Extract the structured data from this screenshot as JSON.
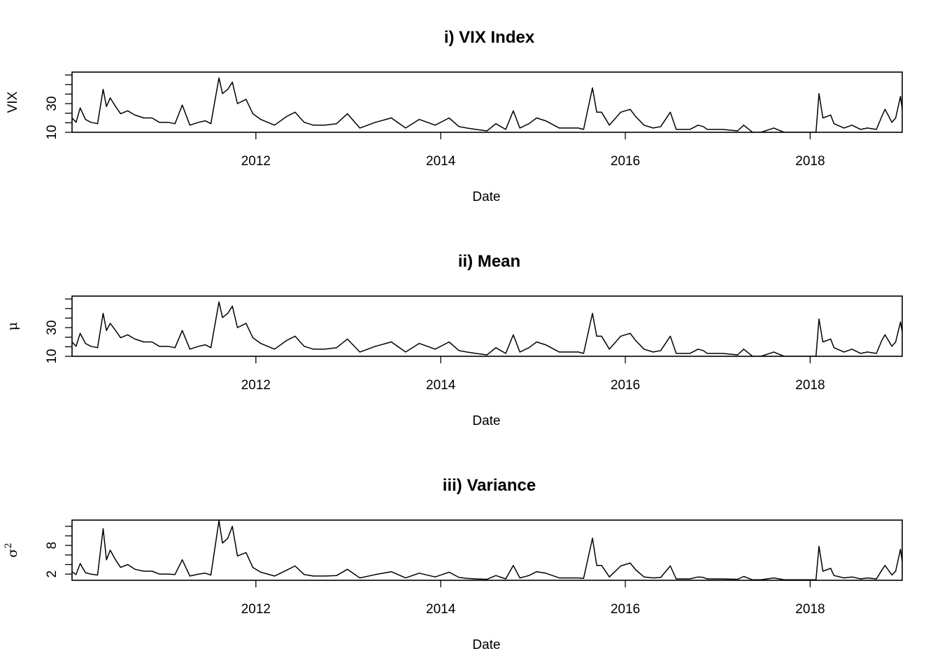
{
  "chart_data": [
    {
      "type": "line",
      "title": "i) VIX Index",
      "xlabel": "Date",
      "ylabel": "VIX",
      "ylim": [
        10,
        52
      ],
      "yticks": [
        10,
        30
      ],
      "xticks": [
        "2012",
        "2014",
        "2016",
        "2018"
      ],
      "xlim": [
        "2010-01-04",
        "2018-12-31"
      ],
      "grid": false,
      "x": [
        "2010-01-04",
        "2010-01-20",
        "2010-02-05",
        "2010-02-26",
        "2010-03-19",
        "2010-04-15",
        "2010-05-07",
        "2010-05-20",
        "2010-06-04",
        "2010-06-25",
        "2010-07-15",
        "2010-08-12",
        "2010-09-10",
        "2010-10-15",
        "2010-11-16",
        "2010-12-15",
        "2011-01-18",
        "2011-02-15",
        "2011-03-16",
        "2011-04-15",
        "2011-05-20",
        "2011-06-15",
        "2011-07-07",
        "2011-08-08",
        "2011-08-22",
        "2011-09-12",
        "2011-09-30",
        "2011-10-20",
        "2011-11-23",
        "2011-12-20",
        "2012-01-20",
        "2012-03-15",
        "2012-05-01",
        "2012-06-04",
        "2012-07-10",
        "2012-08-15",
        "2012-10-01",
        "2012-11-15",
        "2012-12-28",
        "2013-02-15",
        "2013-04-18",
        "2013-06-20",
        "2013-08-15",
        "2013-10-08",
        "2013-12-10",
        "2014-02-03",
        "2014-03-14",
        "2014-04-14",
        "2014-05-20",
        "2014-07-03",
        "2014-08-07",
        "2014-09-15",
        "2014-10-15",
        "2014-11-10",
        "2014-12-16",
        "2015-01-15",
        "2015-02-20",
        "2015-04-15",
        "2015-06-29",
        "2015-07-20",
        "2015-08-24",
        "2015-09-10",
        "2015-09-29",
        "2015-10-30",
        "2015-12-14",
        "2016-01-20",
        "2016-02-11",
        "2016-03-15",
        "2016-04-20",
        "2016-05-20",
        "2016-06-27",
        "2016-07-20",
        "2016-09-12",
        "2016-10-15",
        "2016-11-04",
        "2016-11-20",
        "2017-01-20",
        "2017-03-20",
        "2017-04-13",
        "2017-05-18",
        "2017-06-20",
        "2017-08-10",
        "2017-09-20",
        "2017-11-15",
        "2018-01-03",
        "2018-01-24",
        "2018-02-05",
        "2018-02-20",
        "2018-03-23",
        "2018-04-05",
        "2018-05-15",
        "2018-06-15",
        "2018-07-20",
        "2018-08-15",
        "2018-09-20",
        "2018-10-11",
        "2018-10-24",
        "2018-11-20",
        "2018-12-05",
        "2018-12-24",
        "2018-12-31"
      ],
      "series": [
        {
          "values": [
            20,
            17,
            27,
            19,
            17,
            16,
            40,
            28,
            34,
            28,
            23,
            25,
            22,
            20,
            20,
            17,
            17,
            16,
            29,
            15,
            17,
            18,
            16,
            48,
            37,
            40,
            45,
            30,
            33,
            23,
            19,
            15,
            21,
            24,
            17,
            15,
            15,
            16,
            23,
            13,
            17,
            20,
            13,
            19,
            15,
            20,
            14,
            13,
            12,
            11,
            16,
            12,
            25,
            13,
            16,
            20,
            18,
            13,
            13,
            12,
            41,
            24,
            24,
            15,
            24,
            26,
            21,
            15,
            13,
            14,
            24,
            12,
            12,
            15,
            14,
            12,
            12,
            11,
            15,
            10,
            10,
            13,
            10,
            10,
            10,
            10,
            37,
            20,
            22,
            16,
            13,
            15,
            12,
            13,
            12,
            21,
            26,
            17,
            20,
            35,
            26
          ]
        }
      ]
    },
    {
      "type": "line",
      "title": "ii) Mean",
      "xlabel": "Date",
      "ylabel": "μ",
      "ylim": [
        10,
        52
      ],
      "yticks": [
        10,
        30
      ],
      "xticks": [
        "2012",
        "2014",
        "2016",
        "2018"
      ],
      "xlim": [
        "2010-01-04",
        "2018-12-31"
      ],
      "grid": false,
      "x": [
        "2010-01-04",
        "2010-01-20",
        "2010-02-05",
        "2010-02-26",
        "2010-03-19",
        "2010-04-15",
        "2010-05-07",
        "2010-05-20",
        "2010-06-04",
        "2010-06-25",
        "2010-07-15",
        "2010-08-12",
        "2010-09-10",
        "2010-10-15",
        "2010-11-16",
        "2010-12-15",
        "2011-01-18",
        "2011-02-15",
        "2011-03-16",
        "2011-04-15",
        "2011-05-20",
        "2011-06-15",
        "2011-07-07",
        "2011-08-08",
        "2011-08-22",
        "2011-09-12",
        "2011-09-30",
        "2011-10-20",
        "2011-11-23",
        "2011-12-20",
        "2012-01-20",
        "2012-03-15",
        "2012-05-01",
        "2012-06-04",
        "2012-07-10",
        "2012-08-15",
        "2012-10-01",
        "2012-11-15",
        "2012-12-28",
        "2013-02-15",
        "2013-04-18",
        "2013-06-20",
        "2013-08-15",
        "2013-10-08",
        "2013-12-10",
        "2014-02-03",
        "2014-03-14",
        "2014-04-14",
        "2014-05-20",
        "2014-07-03",
        "2014-08-07",
        "2014-09-15",
        "2014-10-15",
        "2014-11-10",
        "2014-12-16",
        "2015-01-15",
        "2015-02-20",
        "2015-04-15",
        "2015-06-29",
        "2015-07-20",
        "2015-08-24",
        "2015-09-10",
        "2015-09-29",
        "2015-10-30",
        "2015-12-14",
        "2016-01-20",
        "2016-02-11",
        "2016-03-15",
        "2016-04-20",
        "2016-05-20",
        "2016-06-27",
        "2016-07-20",
        "2016-09-12",
        "2016-10-15",
        "2016-11-04",
        "2016-11-20",
        "2017-01-20",
        "2017-03-20",
        "2017-04-13",
        "2017-05-18",
        "2017-06-20",
        "2017-08-10",
        "2017-09-20",
        "2017-11-15",
        "2018-01-03",
        "2018-01-24",
        "2018-02-05",
        "2018-02-20",
        "2018-03-23",
        "2018-04-05",
        "2018-05-15",
        "2018-06-15",
        "2018-07-20",
        "2018-08-15",
        "2018-09-20",
        "2018-10-11",
        "2018-10-24",
        "2018-11-20",
        "2018-12-05",
        "2018-12-24",
        "2018-12-31"
      ],
      "series": [
        {
          "values": [
            20,
            17,
            26,
            19,
            17,
            16,
            40,
            28,
            33,
            28,
            23,
            25,
            22,
            20,
            20,
            17,
            17,
            16,
            28,
            15,
            17,
            18,
            16,
            48,
            37,
            40,
            45,
            30,
            33,
            23,
            19,
            15,
            21,
            24,
            17,
            15,
            15,
            16,
            22,
            13,
            17,
            20,
            13,
            19,
            15,
            20,
            14,
            13,
            12,
            11,
            16,
            12,
            25,
            13,
            16,
            20,
            18,
            13,
            13,
            12,
            40,
            24,
            24,
            15,
            24,
            26,
            21,
            15,
            13,
            14,
            24,
            12,
            12,
            15,
            14,
            12,
            12,
            11,
            15,
            10,
            10,
            13,
            10,
            10,
            10,
            10,
            36,
            20,
            22,
            16,
            13,
            15,
            12,
            13,
            12,
            21,
            25,
            17,
            20,
            34,
            27
          ]
        }
      ]
    },
    {
      "type": "line",
      "title": "iii) Variance",
      "xlabel": "Date",
      "ylabel": "σ²",
      "ylabel_base": "σ",
      "ylabel_sup": "2",
      "ylim": [
        0.7,
        13.3
      ],
      "yticks": [
        2,
        8
      ],
      "xticks": [
        "2012",
        "2014",
        "2016",
        "2018"
      ],
      "xlim": [
        "2010-01-04",
        "2018-12-31"
      ],
      "grid": false,
      "x": [
        "2010-01-04",
        "2010-01-20",
        "2010-02-05",
        "2010-02-26",
        "2010-03-19",
        "2010-04-15",
        "2010-05-07",
        "2010-05-20",
        "2010-06-04",
        "2010-06-25",
        "2010-07-15",
        "2010-08-12",
        "2010-09-10",
        "2010-10-15",
        "2010-11-16",
        "2010-12-15",
        "2011-01-18",
        "2011-02-15",
        "2011-03-16",
        "2011-04-15",
        "2011-05-20",
        "2011-06-15",
        "2011-07-07",
        "2011-08-08",
        "2011-08-22",
        "2011-09-12",
        "2011-09-30",
        "2011-10-20",
        "2011-11-23",
        "2011-12-20",
        "2012-01-20",
        "2012-03-15",
        "2012-05-01",
        "2012-06-04",
        "2012-07-10",
        "2012-08-15",
        "2012-10-01",
        "2012-11-15",
        "2012-12-28",
        "2013-02-15",
        "2013-04-18",
        "2013-06-20",
        "2013-08-15",
        "2013-10-08",
        "2013-12-10",
        "2014-02-03",
        "2014-03-14",
        "2014-04-14",
        "2014-05-20",
        "2014-07-03",
        "2014-08-07",
        "2014-09-15",
        "2014-10-15",
        "2014-11-10",
        "2014-12-16",
        "2015-01-15",
        "2015-02-20",
        "2015-04-15",
        "2015-06-29",
        "2015-07-20",
        "2015-08-24",
        "2015-09-10",
        "2015-09-29",
        "2015-10-30",
        "2015-12-14",
        "2016-01-20",
        "2016-02-11",
        "2016-03-15",
        "2016-04-20",
        "2016-05-20",
        "2016-06-27",
        "2016-07-20",
        "2016-09-12",
        "2016-10-15",
        "2016-11-04",
        "2016-11-20",
        "2017-01-20",
        "2017-03-20",
        "2017-04-13",
        "2017-05-18",
        "2017-06-20",
        "2017-08-10",
        "2017-09-20",
        "2017-11-15",
        "2018-01-03",
        "2018-01-24",
        "2018-02-05",
        "2018-02-20",
        "2018-03-23",
        "2018-04-05",
        "2018-05-15",
        "2018-06-15",
        "2018-07-20",
        "2018-08-15",
        "2018-09-20",
        "2018-10-11",
        "2018-10-24",
        "2018-11-20",
        "2018-12-05",
        "2018-12-24",
        "2018-12-31"
      ],
      "series": [
        {
          "values": [
            2.5,
            1.9,
            4.2,
            2.3,
            2.0,
            1.8,
            11.5,
            5.0,
            7.0,
            5.0,
            3.4,
            4.0,
            3.0,
            2.6,
            2.6,
            2.0,
            2.0,
            1.9,
            5.0,
            1.6,
            2.0,
            2.2,
            1.8,
            13.2,
            8.5,
            9.5,
            12.0,
            5.8,
            6.5,
            3.4,
            2.4,
            1.6,
            2.8,
            3.7,
            1.9,
            1.6,
            1.6,
            1.7,
            3.0,
            1.2,
            1.9,
            2.5,
            1.2,
            2.2,
            1.4,
            2.4,
            1.3,
            1.1,
            1.0,
            0.9,
            1.7,
            1.0,
            3.8,
            1.2,
            1.7,
            2.5,
            2.2,
            1.2,
            1.2,
            1.1,
            9.5,
            3.8,
            3.8,
            1.4,
            3.7,
            4.3,
            2.9,
            1.4,
            1.2,
            1.3,
            3.7,
            1.0,
            1.0,
            1.4,
            1.3,
            1.0,
            1.0,
            0.9,
            1.5,
            0.8,
            0.8,
            1.2,
            0.8,
            0.8,
            0.8,
            0.8,
            7.8,
            2.6,
            3.2,
            1.7,
            1.2,
            1.4,
            1.0,
            1.2,
            1.0,
            2.8,
            3.8,
            1.8,
            2.6,
            7.2,
            4.6
          ]
        }
      ]
    }
  ]
}
